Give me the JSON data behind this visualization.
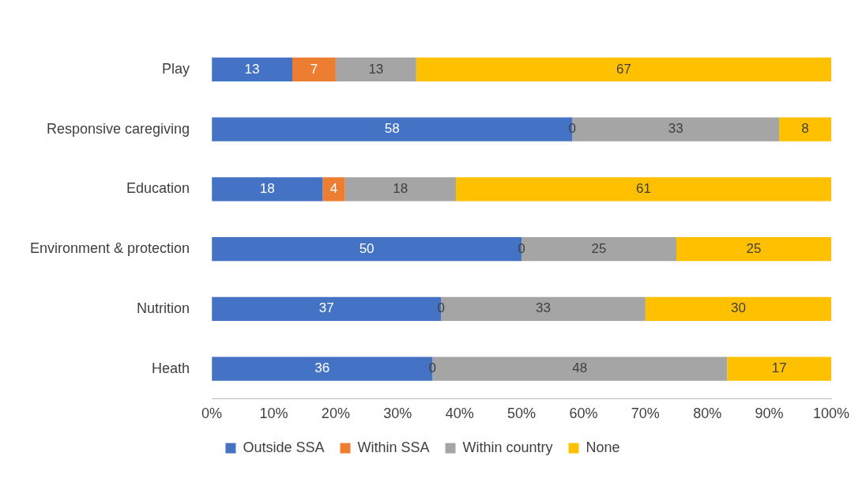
{
  "chart_data": {
    "type": "bar",
    "orientation": "horizontal",
    "stacked": true,
    "categories": [
      "Play",
      "Responsive caregiving",
      "Education",
      "Environment & protection",
      "Nutrition",
      "Heath"
    ],
    "series": [
      {
        "name": "Outside SSA",
        "color": "#4472c4",
        "values": [
          13,
          58.2,
          17.9,
          50,
          37,
          35.6
        ],
        "value_labels": [
          "13",
          "58",
          "18",
          "50",
          "37",
          "36"
        ]
      },
      {
        "name": "Within SSA",
        "color": "#ed7d31",
        "values": [
          7,
          0,
          3.6,
          0,
          0,
          0
        ],
        "value_labels": [
          "7",
          null,
          "4",
          null,
          null,
          null
        ]
      },
      {
        "name": "Within country",
        "color": "#a5a5a5",
        "values": [
          13,
          33.4,
          17.9,
          25,
          33,
          47.6
        ],
        "value_labels": [
          "13",
          "33",
          "18",
          "25",
          "33",
          "48"
        ]
      },
      {
        "name": "None",
        "color": "#ffc000",
        "values": [
          67,
          8.4,
          60.6,
          25,
          30,
          16.8
        ],
        "value_labels": [
          "67",
          "8",
          "61",
          "25",
          "30",
          "17"
        ]
      }
    ],
    "annotations": [
      {
        "text": "0",
        "x": 58.2,
        "y": "Responsive caregiving"
      },
      {
        "text": "0",
        "x": 50,
        "y": "Environment & protection"
      },
      {
        "text": "0",
        "x": 37,
        "y": "Nutrition"
      },
      {
        "text": "0",
        "x": 35.6,
        "y": "Heath"
      }
    ],
    "xlim": [
      0,
      100
    ],
    "xticks": [
      {
        "value": 0,
        "label": "0%"
      },
      {
        "value": 10,
        "label": "10%"
      },
      {
        "value": 20,
        "label": "20%"
      },
      {
        "value": 30,
        "label": "30%"
      },
      {
        "value": 40,
        "label": "40%"
      },
      {
        "value": 50,
        "label": "50%"
      },
      {
        "value": 60,
        "label": "60%"
      },
      {
        "value": 70,
        "label": "70%"
      },
      {
        "value": 80,
        "label": "80%"
      },
      {
        "value": 90,
        "label": "90%"
      },
      {
        "value": 100,
        "label": "100%"
      }
    ],
    "grid": false,
    "legend": "bottom"
  }
}
